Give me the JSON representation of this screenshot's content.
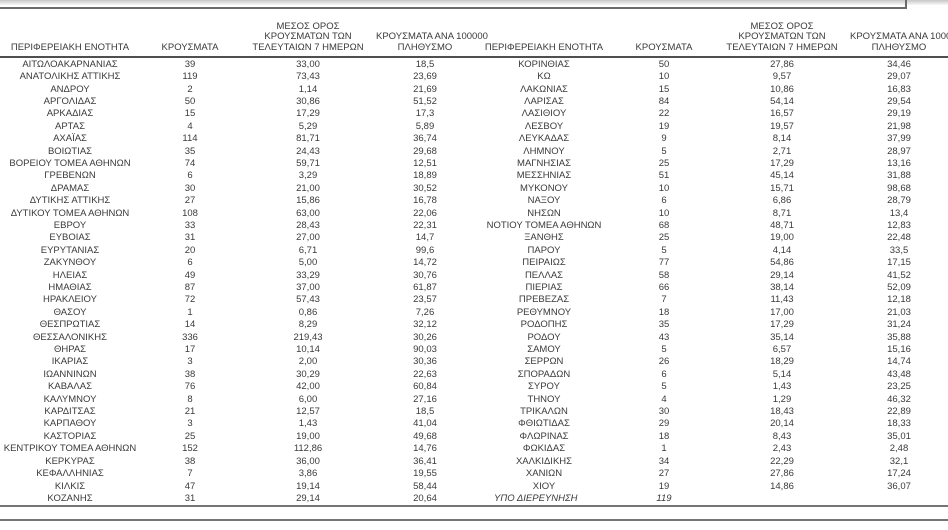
{
  "colors": {
    "text": "#3a3a3a",
    "header_rule": "#4f4f4f",
    "top_rule": "#6b6b6b",
    "bottom_rules": "#757575",
    "background": "#ffffff"
  },
  "table": {
    "headers": {
      "region": "ΠΕΡΙΦΕΡΕΙΑΚΗ ΕΝΟΤΗΤΑ",
      "cases": "ΚΡΟΥΣΜΑΤΑ",
      "avg7_lines": [
        "ΜΕΣΟΣ ΟΡΟΣ",
        "ΚΡΟΥΣΜΑΤΩΝ ΤΩΝ",
        "ΤΕΛΕΥΤΑΙΩΝ 7 ΗΜΕΡΩΝ"
      ],
      "per100k_lines": [
        "ΚΡΟΥΣΜΑΤΑ ΑΝΑ 100000",
        "ΠΛΗΘΥΣΜΟ"
      ]
    },
    "left_rows": [
      [
        "ΑΙΤΩΛΟΑΚΑΡΝΑΝΙΑΣ",
        "39",
        "33,00",
        "18,5"
      ],
      [
        "ΑΝΑΤΟΛΙΚΗΣ ΑΤΤΙΚΗΣ",
        "119",
        "73,43",
        "23,69"
      ],
      [
        "ΑΝΔΡΟΥ",
        "2",
        "1,14",
        "21,69"
      ],
      [
        "ΑΡΓΟΛΙΔΑΣ",
        "50",
        "30,86",
        "51,52"
      ],
      [
        "ΑΡΚΑΔΙΑΣ",
        "15",
        "17,29",
        "17,3"
      ],
      [
        "ΑΡΤΑΣ",
        "4",
        "5,29",
        "5,89"
      ],
      [
        "ΑΧΑΪΑΣ",
        "114",
        "81,71",
        "36,74"
      ],
      [
        "ΒΟΙΩΤΙΑΣ",
        "35",
        "24,43",
        "29,68"
      ],
      [
        "ΒΟΡΕΙΟΥ ΤΟΜΕΑ ΑΘΗΝΩΝ",
        "74",
        "59,71",
        "12,51"
      ],
      [
        "ΓΡΕΒΕΝΩΝ",
        "6",
        "3,29",
        "18,89"
      ],
      [
        "ΔΡΑΜΑΣ",
        "30",
        "21,00",
        "30,52"
      ],
      [
        "ΔΥΤΙΚΗΣ ΑΤΤΙΚΗΣ",
        "27",
        "15,86",
        "16,78"
      ],
      [
        "ΔΥΤΙΚΟΥ ΤΟΜΕΑ ΑΘΗΝΩΝ",
        "108",
        "63,00",
        "22,06"
      ],
      [
        "ΕΒΡΟΥ",
        "33",
        "28,43",
        "22,31"
      ],
      [
        "ΕΥΒΟΙΑΣ",
        "31",
        "27,00",
        "14,7"
      ],
      [
        "ΕΥΡΥΤΑΝΙΑΣ",
        "20",
        "6,71",
        "99,6"
      ],
      [
        "ΖΑΚΥΝΘΟΥ",
        "6",
        "5,00",
        "14,72"
      ],
      [
        "ΗΛΕΙΑΣ",
        "49",
        "33,29",
        "30,76"
      ],
      [
        "ΗΜΑΘΙΑΣ",
        "87",
        "37,00",
        "61,87"
      ],
      [
        "ΗΡΑΚΛΕΙΟΥ",
        "72",
        "57,43",
        "23,57"
      ],
      [
        "ΘΑΣΟΥ",
        "1",
        "0,86",
        "7,26"
      ],
      [
        "ΘΕΣΠΡΩΤΙΑΣ",
        "14",
        "8,29",
        "32,12"
      ],
      [
        "ΘΕΣΣΑΛΟΝΙΚΗΣ",
        "336",
        "219,43",
        "30,26"
      ],
      [
        "ΘΗΡΑΣ",
        "17",
        "10,14",
        "90,03"
      ],
      [
        "ΙΚΑΡΙΑΣ",
        "3",
        "2,00",
        "30,36"
      ],
      [
        "ΙΩΑΝΝΙΝΩΝ",
        "38",
        "30,29",
        "22,63"
      ],
      [
        "ΚΑΒΑΛΑΣ",
        "76",
        "42,00",
        "60,84"
      ],
      [
        "ΚΑΛΥΜΝΟΥ",
        "8",
        "6,00",
        "27,16"
      ],
      [
        "ΚΑΡΔΙΤΣΑΣ",
        "21",
        "12,57",
        "18,5"
      ],
      [
        "ΚΑΡΠΑΘΟΥ",
        "3",
        "1,43",
        "41,04"
      ],
      [
        "ΚΑΣΤΟΡΙΑΣ",
        "25",
        "19,00",
        "49,68"
      ],
      [
        "ΚΕΝΤΡΙΚΟΥ ΤΟΜΕΑ ΑΘΗΝΩΝ",
        "152",
        "112,86",
        "14,76"
      ],
      [
        "ΚΕΡΚΥΡΑΣ",
        "38",
        "36,00",
        "36,41"
      ],
      [
        "ΚΕΦΑΛΛΗΝΙΑΣ",
        "7",
        "3,86",
        "19,55"
      ],
      [
        "ΚΙΛΚΙΣ",
        "47",
        "19,14",
        "58,44"
      ],
      [
        "ΚΟΖΑΝΗΣ",
        "31",
        "29,14",
        "20,64"
      ]
    ],
    "right_rows": [
      [
        "ΚΟΡΙΝΘΙΑΣ",
        "50",
        "27,86",
        "34,46"
      ],
      [
        "ΚΩ",
        "10",
        "9,57",
        "29,07"
      ],
      [
        "ΛΑΚΩΝΙΑΣ",
        "15",
        "10,86",
        "16,83"
      ],
      [
        "ΛΑΡΙΣΑΣ",
        "84",
        "54,14",
        "29,54"
      ],
      [
        "ΛΑΣΙΘΙΟΥ",
        "22",
        "16,57",
        "29,19"
      ],
      [
        "ΛΕΣΒΟΥ",
        "19",
        "19,57",
        "21,98"
      ],
      [
        "ΛΕΥΚΑΔΑΣ",
        "9",
        "8,14",
        "37,99"
      ],
      [
        "ΛΗΜΝΟΥ",
        "5",
        "2,71",
        "28,97"
      ],
      [
        "ΜΑΓΝΗΣΙΑΣ",
        "25",
        "17,29",
        "13,16"
      ],
      [
        "ΜΕΣΣΗΝΙΑΣ",
        "51",
        "45,14",
        "31,88"
      ],
      [
        "ΜΥΚΟΝΟΥ",
        "10",
        "15,71",
        "98,68"
      ],
      [
        "ΝΑΞΟΥ",
        "6",
        "6,86",
        "28,79"
      ],
      [
        "ΝΗΣΩΝ",
        "10",
        "8,71",
        "13,4"
      ],
      [
        "ΝΟΤΙΟΥ ΤΟΜΕΑ ΑΘΗΝΩΝ",
        "68",
        "48,71",
        "12,83"
      ],
      [
        "ΞΑΝΘΗΣ",
        "25",
        "19,00",
        "22,48"
      ],
      [
        "ΠΑΡΟΥ",
        "5",
        "4,14",
        "33,5"
      ],
      [
        "ΠΕΙΡΑΙΩΣ",
        "77",
        "54,86",
        "17,15"
      ],
      [
        "ΠΕΛΛΑΣ",
        "58",
        "29,14",
        "41,52"
      ],
      [
        "ΠΙΕΡΙΑΣ",
        "66",
        "38,14",
        "52,09"
      ],
      [
        "ΠΡΕΒΕΖΑΣ",
        "7",
        "11,43",
        "12,18"
      ],
      [
        "ΡΕΘΥΜΝΟΥ",
        "18",
        "17,00",
        "21,03"
      ],
      [
        "ΡΟΔΟΠΗΣ",
        "35",
        "17,29",
        "31,24"
      ],
      [
        "ΡΟΔΟΥ",
        "43",
        "35,14",
        "35,88"
      ],
      [
        "ΣΑΜΟΥ",
        "5",
        "6,57",
        "15,16"
      ],
      [
        "ΣΕΡΡΩΝ",
        "26",
        "18,29",
        "14,74"
      ],
      [
        "ΣΠΟΡΑΔΩΝ",
        "6",
        "5,14",
        "43,48"
      ],
      [
        "ΣΥΡΟΥ",
        "5",
        "1,43",
        "23,25"
      ],
      [
        "ΤΗΝΟΥ",
        "4",
        "1,29",
        "46,32"
      ],
      [
        "ΤΡΙΚΑΛΩΝ",
        "30",
        "18,43",
        "22,89"
      ],
      [
        "ΦΘΙΩΤΙΔΑΣ",
        "29",
        "20,14",
        "18,33"
      ],
      [
        "ΦΛΩΡΙΝΑΣ",
        "18",
        "8,43",
        "35,01"
      ],
      [
        "ΦΩΚΙΔΑΣ",
        "1",
        "2,43",
        "2,48"
      ],
      [
        "ΧΑΛΚΙΔΙΚΗΣ",
        "34",
        "22,29",
        "32,1"
      ],
      [
        "ΧΑΝΙΩΝ",
        "27",
        "27,86",
        "17,24"
      ],
      [
        "ΧΙΟΥ",
        "19",
        "14,86",
        "36,07"
      ],
      [
        "ΥΠΟ ΔΙΕΡΕΥΝΗΣΗ",
        "119",
        "",
        "",
        "italic"
      ]
    ]
  }
}
